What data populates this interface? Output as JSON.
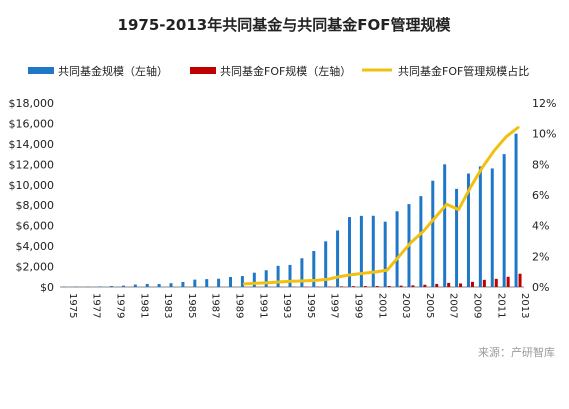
{
  "chart_data": {
    "type": "bar",
    "title": "1975-2013年共同基金与共同基金FOF管理规模",
    "categories": [
      1975,
      1976,
      1977,
      1978,
      1979,
      1980,
      1981,
      1982,
      1983,
      1984,
      1985,
      1986,
      1987,
      1988,
      1989,
      1990,
      1991,
      1992,
      1993,
      1994,
      1995,
      1996,
      1997,
      1998,
      1999,
      2000,
      2001,
      2002,
      2003,
      2004,
      2005,
      2006,
      2007,
      2008,
      2009,
      2010,
      2011,
      2012,
      2013
    ],
    "x_tick_labels": [
      "1975",
      "1977",
      "1979",
      "1981",
      "1983",
      "1985",
      "1987",
      "1989",
      "1991",
      "1993",
      "1995",
      "1997",
      "1999",
      "2001",
      "2003",
      "2005",
      "2007",
      "2009",
      "2011",
      "2013"
    ],
    "series": [
      {
        "name": "共同基金规模（左轴）",
        "axis": "left",
        "type": "bar",
        "color": "#1f77c8",
        "values": [
          45,
          50,
          48,
          55,
          95,
          135,
          240,
          300,
          290,
          370,
          490,
          720,
          770,
          810,
          980,
          1070,
          1400,
          1640,
          2070,
          2160,
          2810,
          3520,
          4470,
          5530,
          6840,
          6960,
          6970,
          6390,
          7410,
          8110,
          8890,
          10400,
          12000,
          9600,
          11100,
          11800,
          11600,
          13000,
          15000
        ]
      },
      {
        "name": "共同基金FOF规模（左轴）",
        "axis": "left",
        "type": "bar",
        "color": "#c00000",
        "values": [
          0,
          0,
          0,
          0,
          0,
          0,
          0,
          0,
          0,
          0,
          0,
          0,
          0,
          0,
          0,
          0,
          5,
          10,
          15,
          20,
          25,
          30,
          40,
          60,
          80,
          90,
          95,
          100,
          130,
          160,
          220,
          300,
          400,
          350,
          500,
          700,
          800,
          1000,
          1300
        ]
      },
      {
        "name": "共同基金FOF管理规模占比",
        "axis": "right",
        "type": "line",
        "color": "#f2c010",
        "x": [
          1990,
          1991,
          1992,
          1993,
          1994,
          1995,
          1996,
          1997,
          1998,
          1999,
          2000,
          2001,
          2002,
          2003,
          2004,
          2005,
          2006,
          2007,
          2008,
          2009,
          2010,
          2011,
          2012,
          2013
        ],
        "values": [
          0.2,
          0.25,
          0.28,
          0.33,
          0.37,
          0.4,
          0.43,
          0.5,
          0.68,
          0.8,
          0.9,
          0.98,
          1.1,
          2.0,
          2.9,
          3.6,
          4.5,
          5.4,
          5.05,
          6.5,
          7.8,
          8.9,
          9.8,
          10.4
        ]
      }
    ],
    "y_left": {
      "ylim": [
        0,
        18000
      ],
      "ticks": [
        "$0",
        "$2,000",
        "$4,000",
        "$6,000",
        "$8,000",
        "$10,000",
        "$12,000",
        "$14,000",
        "$16,000",
        "$18,000"
      ]
    },
    "y_right": {
      "ylim": [
        0,
        12
      ],
      "ticks": [
        "0%",
        "2%",
        "4%",
        "6%",
        "8%",
        "10%",
        "12%"
      ]
    },
    "grid": false,
    "legend_position": "top"
  },
  "source": "来源：产研智库"
}
